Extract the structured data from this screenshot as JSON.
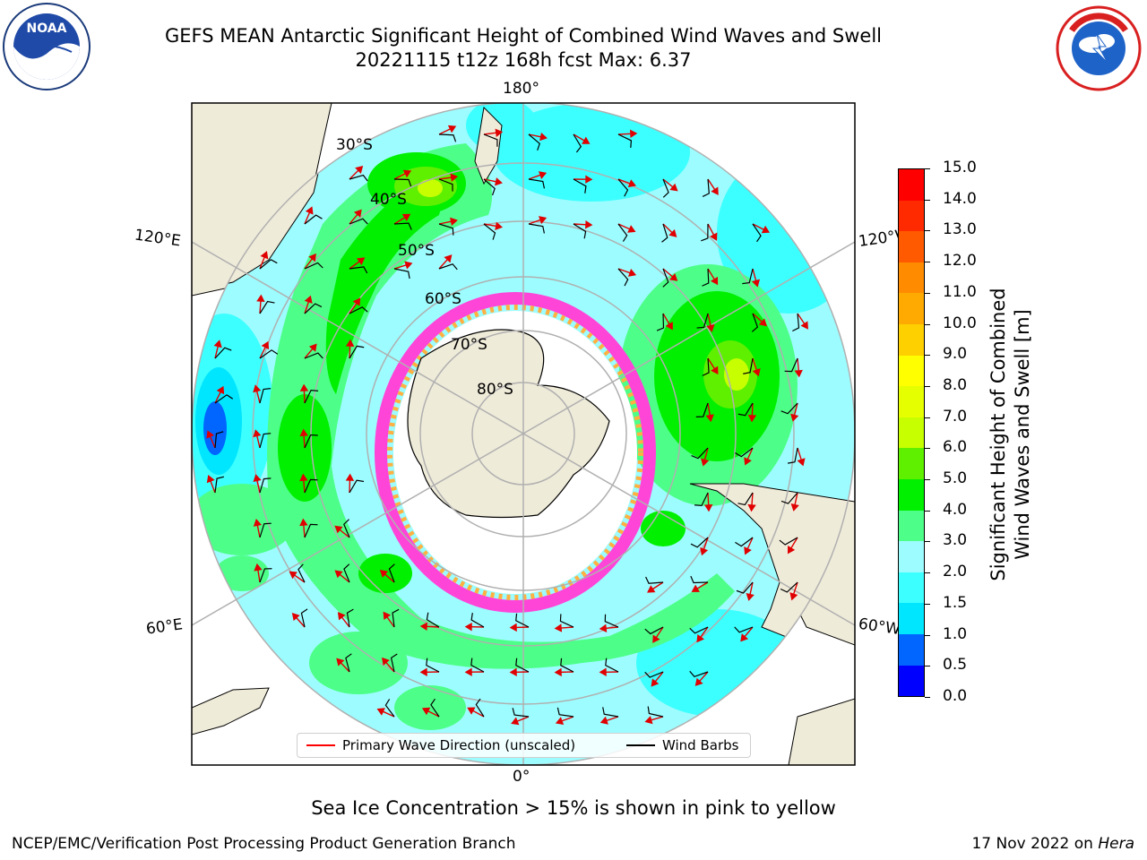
{
  "header": {
    "title_line1": "GEFS MEAN Antarctic Significant Height of Combined Wind Waves and Swell",
    "title_line2": "20221115 t12z 168h fcst   Max: 6.37"
  },
  "logos": {
    "left": {
      "name": "NOAA",
      "text": "NOAA",
      "ring_text": "NATIONAL OCEANIC AND ATMOSPHERIC ADMINISTRATION · U.S. DEPARTMENT OF COMMERCE"
    },
    "right": {
      "name": "National Weather Service",
      "ring_text": "NATIONAL WEATHER SERVICE"
    }
  },
  "map": {
    "projection": "south polar stereographic",
    "longitude_labels": {
      "top": "180°",
      "bottom": "0°",
      "upper_left": "120°E",
      "upper_right": "120°W",
      "lower_left": "60°E",
      "lower_right": "60°W"
    },
    "latitude_labels": [
      "30°S",
      "40°S",
      "50°S",
      "60°S",
      "70°S",
      "80°S"
    ]
  },
  "colorbar": {
    "label_line1": "Significant Height of Combined",
    "label_line2": "Wind Waves and Swell [m]",
    "ticks": [
      "0.0",
      "0.5",
      "1.0",
      "1.5",
      "2.0",
      "3.0",
      "4.0",
      "5.0",
      "6.0",
      "7.0",
      "8.0",
      "9.0",
      "10.0",
      "11.0",
      "12.0",
      "13.0",
      "14.0",
      "15.0"
    ],
    "colors": [
      "#0000ff",
      "#0066ff",
      "#00e6ff",
      "#3cffff",
      "#9dfcff",
      "#4dff88",
      "#00f000",
      "#5ff000",
      "#c7ff00",
      "#e6ff00",
      "#ffff00",
      "#ffd000",
      "#ffaa00",
      "#ff8c00",
      "#ff5a00",
      "#ff2a00",
      "#ff0000"
    ]
  },
  "legend": {
    "wave_label": "Primary Wave Direction (unscaled)",
    "wave_color": "#ff0000",
    "wind_label": "Wind Barbs",
    "wind_color": "#000000"
  },
  "note": "Sea Ice Concentration > 15% is shown in pink to yellow",
  "footer": {
    "left": "NCEP/EMC/Verification Post Processing Product Generation Branch",
    "right_prefix": "17 Nov 2022 on ",
    "right_host": "Hera"
  }
}
